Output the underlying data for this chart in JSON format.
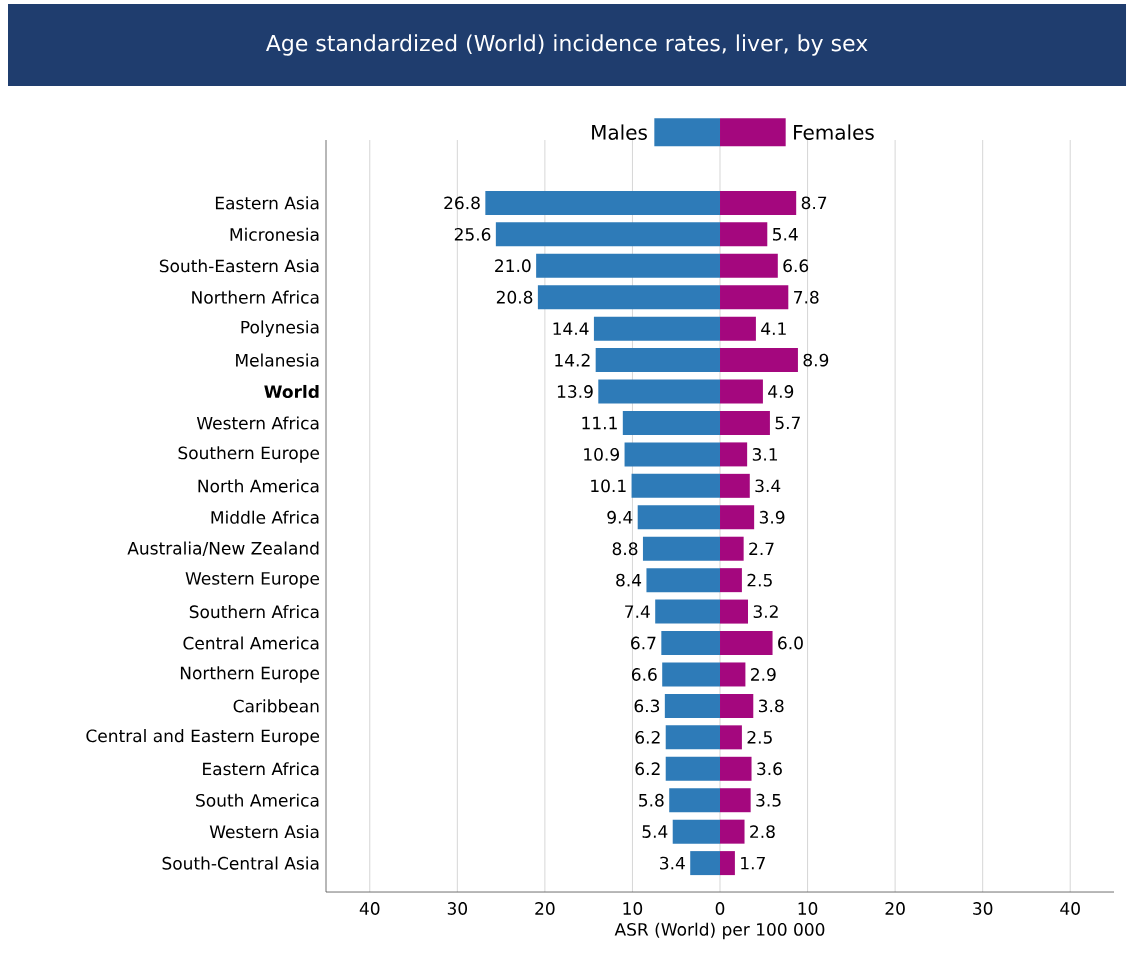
{
  "chart_data": [
    {
      "type": "bar",
      "orientation": "horizontal",
      "title": "Age standardized (World) incidence rates, liver, by sex",
      "xlabel": "ASR (World) per 100 000",
      "categories": [
        "Eastern Asia",
        "Micronesia",
        "South-Eastern Asia",
        "Northern Africa",
        "Polynesia",
        "Melanesia",
        "**World**",
        "Western Africa",
        "Southern Europe",
        "North America",
        "Middle Africa",
        "Australia/New Zealand",
        "Western Europe",
        "Southern Africa",
        "Central America",
        "Northern Europe",
        "Caribbean",
        "Central and Eastern Europe",
        "Eastern Africa",
        "South America",
        "Western Asia",
        "South-Central Asia"
      ],
      "series": [
        {
          "name": "Males",
          "color": "#2e7bb8",
          "values": [
            26.8,
            25.6,
            21.0,
            20.8,
            14.4,
            14.2,
            13.9,
            11.1,
            10.9,
            10.1,
            9.4,
            8.8,
            8.4,
            7.4,
            6.7,
            6.6,
            6.3,
            6.2,
            6.2,
            5.8,
            5.4,
            3.4
          ],
          "value_labels": [
            "26.8",
            "25.6",
            "21.0",
            "20.8",
            "14.4",
            "14.2",
            "13.9",
            "11.1",
            "10.9",
            "10.1",
            "9.4",
            "8.8",
            "8.4",
            "7.4",
            "6.7",
            "6.6",
            "6.3",
            "6.2",
            "6.2",
            "5.8",
            "5.4",
            "3.4"
          ]
        }
      ],
      "xlim": [
        45,
        0
      ],
      "xticks": [
        40,
        30,
        20,
        10,
        0
      ],
      "grid": "x",
      "legend": "top"
    },
    {
      "type": "bar",
      "orientation": "horizontal",
      "categories": [
        null,
        null,
        null,
        null,
        null,
        null,
        null,
        null,
        null,
        null,
        null,
        null,
        null,
        null,
        null,
        null,
        null,
        null,
        null,
        null,
        null,
        null
      ],
      "series": [
        {
          "name": "Females",
          "color": "#a4077e",
          "values": [
            8.7,
            5.4,
            6.6,
            7.8,
            4.1,
            8.9,
            4.9,
            5.7,
            3.1,
            3.4,
            3.9,
            2.7,
            2.5,
            3.2,
            6.0,
            2.9,
            3.8,
            2.5,
            3.6,
            3.5,
            2.8,
            1.7
          ],
          "value_labels": [
            "8.7",
            "5.4",
            "6.6",
            "7.8",
            "4.1",
            "8.9",
            "4.9",
            "5.7",
            "3.1",
            "3.4",
            "3.9",
            "2.7",
            "2.5",
            "3.2",
            "6.0",
            "2.9",
            "3.8",
            "2.5",
            "3.6",
            "3.5",
            "2.8",
            "1.7"
          ]
        }
      ],
      "xlim": [
        0,
        45
      ],
      "xticks": [
        10,
        20,
        30,
        40
      ],
      "grid": "x",
      "legend": "top",
      "tick_labels": "x"
    }
  ]
}
